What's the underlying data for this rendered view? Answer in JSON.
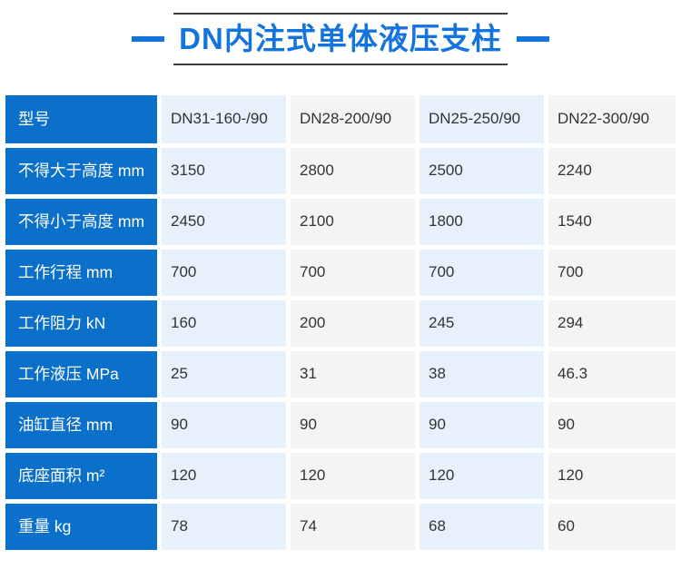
{
  "title": {
    "text": "DN内注式单体液压支柱",
    "accent_color": "#1474dd",
    "rule_color": "#3c3c3c"
  },
  "table": {
    "header_label": "型号",
    "models": [
      "DN31-160-/90",
      "DN28-200/90",
      "DN25-250/90",
      "DN22-300/90"
    ],
    "rows": [
      {
        "label": "不得大于高度 mm",
        "values": [
          "3150",
          "2800",
          "2500",
          "2240"
        ]
      },
      {
        "label": "不得小于高度 mm",
        "values": [
          "2450",
          "2100",
          "1800",
          "1540"
        ]
      },
      {
        "label": "工作行程 mm",
        "values": [
          "700",
          "700",
          "700",
          "700"
        ]
      },
      {
        "label": "工作阻力 kN",
        "values": [
          "160",
          "200",
          "245",
          "294"
        ]
      },
      {
        "label": "工作液压 MPa",
        "values": [
          "25",
          "31",
          "38",
          "46.3"
        ]
      },
      {
        "label": "油缸直径 mm",
        "values": [
          "90",
          "90",
          "90",
          "90"
        ]
      },
      {
        "label": "底座面积 m²",
        "values": [
          "120",
          "120",
          "120",
          "120"
        ]
      },
      {
        "label": "重量 kg",
        "values": [
          "78",
          "74",
          "68",
          "60"
        ]
      }
    ],
    "colors": {
      "label_bg": "#0b70c9",
      "cell_blue_bg": "#e6f1fb",
      "cell_gray_bg": "#f4f4f4",
      "data_text": "#333333",
      "label_text": "#ffffff"
    }
  }
}
